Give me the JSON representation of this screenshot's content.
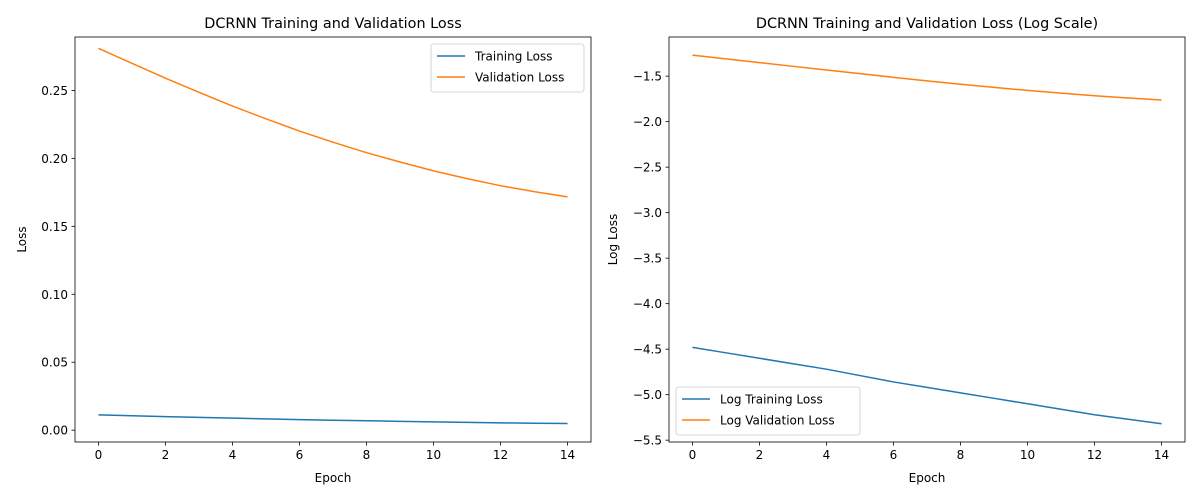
{
  "chart_data": [
    {
      "type": "line",
      "title": "DCRNN Training and Validation Loss",
      "xlabel": "Epoch",
      "ylabel": "Loss",
      "xlim": [
        -0.7,
        14.7
      ],
      "ylim": [
        -0.0087,
        0.2893
      ],
      "xticks": [
        0,
        2,
        4,
        6,
        8,
        10,
        12,
        14
      ],
      "xtick_labels": [
        "0",
        "2",
        "4",
        "6",
        "8",
        "10",
        "12",
        "14"
      ],
      "yticks": [
        0.0,
        0.05,
        0.1,
        0.15,
        0.2,
        0.25
      ],
      "ytick_labels": [
        "0.00",
        "0.05",
        "0.10",
        "0.15",
        "0.20",
        "0.25"
      ],
      "grid": false,
      "legend_position": "top-right",
      "x": [
        0,
        1,
        2,
        3,
        4,
        5,
        6,
        7,
        8,
        9,
        10,
        11,
        12,
        13,
        14
      ],
      "series": [
        {
          "name": "Training Loss",
          "color": "#1f77b4",
          "values": [
            0.0113,
            0.0106,
            0.01,
            0.0094,
            0.0089,
            0.0083,
            0.0078,
            0.0073,
            0.0069,
            0.0065,
            0.0061,
            0.0057,
            0.0054,
            0.0051,
            0.0049
          ]
        },
        {
          "name": "Validation Loss",
          "color": "#ff7f0e",
          "values": [
            0.281,
            0.2699,
            0.259,
            0.2486,
            0.2385,
            0.2291,
            0.2201,
            0.2119,
            0.2042,
            0.1973,
            0.1908,
            0.1851,
            0.1799,
            0.1755,
            0.1717
          ]
        }
      ]
    },
    {
      "type": "line",
      "title": "DCRNN Training and Validation Loss (Log Scale)",
      "xlabel": "Epoch",
      "ylabel": "Log Loss",
      "xlim": [
        -0.7,
        14.7
      ],
      "ylim": [
        -5.52,
        -1.07
      ],
      "xticks": [
        0,
        2,
        4,
        6,
        8,
        10,
        12,
        14
      ],
      "xtick_labels": [
        "0",
        "2",
        "4",
        "6",
        "8",
        "10",
        "12",
        "14"
      ],
      "yticks": [
        -5.5,
        -5.0,
        -4.5,
        -4.0,
        -3.5,
        -3.0,
        -2.5,
        -2.0,
        -1.5
      ],
      "ytick_labels": [
        "−5.5",
        "−5.0",
        "−4.5",
        "−4.0",
        "−3.5",
        "−3.0",
        "−2.5",
        "−2.0",
        "−1.5"
      ],
      "grid": false,
      "legend_position": "bottom-left",
      "x": [
        0,
        1,
        2,
        3,
        4,
        5,
        6,
        7,
        8,
        9,
        10,
        11,
        12,
        13,
        14
      ],
      "series": [
        {
          "name": "Log Training Loss",
          "color": "#1f77b4",
          "values": [
            -4.48,
            -4.54,
            -4.6,
            -4.66,
            -4.72,
            -4.79,
            -4.86,
            -4.92,
            -4.98,
            -5.04,
            -5.1,
            -5.16,
            -5.22,
            -5.27,
            -5.32
          ]
        },
        {
          "name": "Log Validation Loss",
          "color": "#ff7f0e",
          "values": [
            -1.269,
            -1.31,
            -1.351,
            -1.392,
            -1.433,
            -1.473,
            -1.513,
            -1.552,
            -1.589,
            -1.623,
            -1.657,
            -1.687,
            -1.715,
            -1.74,
            -1.762
          ]
        }
      ]
    }
  ]
}
